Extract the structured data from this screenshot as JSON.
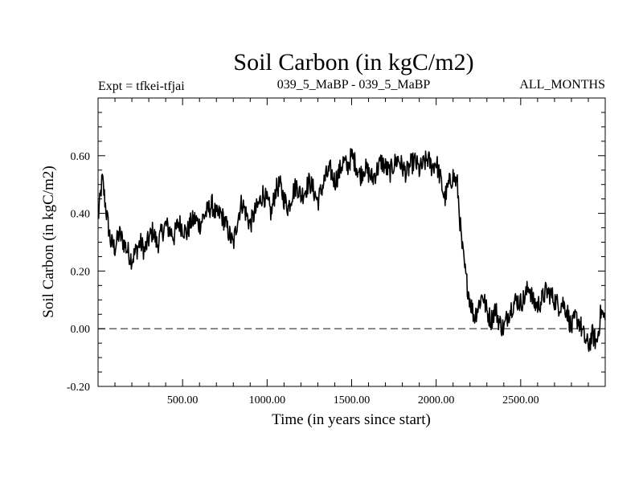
{
  "chart_data": {
    "type": "line",
    "title": "Soil Carbon (in kgC/m2)",
    "subtitle_left": "Expt = tfkei-tfjai",
    "subtitle_center": "039_5_MaBP - 039_5_MaBP",
    "subtitle_right": "ALL_MONTHS",
    "xlabel": "Time (in years since start)",
    "ylabel": "Soil Carbon (in kgC/m2)",
    "xlim": [
      0,
      3000
    ],
    "ylim": [
      -0.2,
      0.8
    ],
    "xticks": [
      500,
      1000,
      1500,
      2000,
      2500
    ],
    "xtick_labels": [
      "500.00",
      "1000.00",
      "1500.00",
      "2000.00",
      "2500.00"
    ],
    "yticks": [
      -0.2,
      0.0,
      0.2,
      0.4,
      0.6
    ],
    "ytick_labels": [
      "-0.20",
      "0.00",
      "0.20",
      "0.40",
      "0.60"
    ],
    "reference_line": {
      "y": 0.0,
      "style": "dashed"
    },
    "series": [
      {
        "x": [
          0,
          25,
          50,
          75,
          100,
          125,
          150,
          175,
          200,
          225,
          250,
          275,
          300,
          325,
          350,
          375,
          400,
          425,
          450,
          475,
          500,
          525,
          550,
          575,
          600,
          625,
          650,
          675,
          700,
          725,
          750,
          775,
          800,
          825,
          850,
          875,
          900,
          925,
          950,
          975,
          1000,
          1025,
          1050,
          1075,
          1100,
          1125,
          1150,
          1175,
          1200,
          1225,
          1250,
          1275,
          1300,
          1325,
          1350,
          1375,
          1400,
          1425,
          1450,
          1475,
          1500,
          1525,
          1550,
          1575,
          1600,
          1625,
          1650,
          1675,
          1700,
          1725,
          1750,
          1775,
          1800,
          1825,
          1850,
          1875,
          1900,
          1925,
          1950,
          1975,
          2000,
          2025,
          2050,
          2075,
          2100,
          2125,
          2150,
          2175,
          2200,
          2225,
          2250,
          2275,
          2300,
          2325,
          2350,
          2375,
          2400,
          2425,
          2450,
          2475,
          2500,
          2525,
          2550,
          2575,
          2600,
          2625,
          2650,
          2675,
          2700,
          2725,
          2750,
          2775,
          2800,
          2825,
          2850,
          2875,
          2900,
          2925,
          2950,
          2975,
          3000
        ],
        "values": [
          0.38,
          0.52,
          0.4,
          0.3,
          0.28,
          0.33,
          0.3,
          0.27,
          0.24,
          0.27,
          0.3,
          0.27,
          0.31,
          0.34,
          0.29,
          0.33,
          0.36,
          0.34,
          0.32,
          0.37,
          0.35,
          0.33,
          0.37,
          0.38,
          0.36,
          0.39,
          0.41,
          0.43,
          0.39,
          0.4,
          0.37,
          0.33,
          0.29,
          0.38,
          0.44,
          0.4,
          0.36,
          0.4,
          0.43,
          0.47,
          0.44,
          0.4,
          0.48,
          0.5,
          0.45,
          0.42,
          0.47,
          0.5,
          0.46,
          0.48,
          0.51,
          0.48,
          0.44,
          0.49,
          0.53,
          0.55,
          0.51,
          0.54,
          0.58,
          0.56,
          0.6,
          0.57,
          0.53,
          0.56,
          0.54,
          0.52,
          0.55,
          0.58,
          0.56,
          0.54,
          0.57,
          0.59,
          0.56,
          0.54,
          0.57,
          0.58,
          0.55,
          0.57,
          0.59,
          0.56,
          0.58,
          0.52,
          0.45,
          0.5,
          0.53,
          0.5,
          0.3,
          0.18,
          0.1,
          0.04,
          0.08,
          0.12,
          0.06,
          0.03,
          0.07,
          0.02,
          0.0,
          0.05,
          0.08,
          0.1,
          0.09,
          0.11,
          0.15,
          0.09,
          0.08,
          0.1,
          0.13,
          0.12,
          0.1,
          0.08,
          0.09,
          0.06,
          0.0,
          0.04,
          0.02,
          -0.03,
          -0.06,
          -0.02,
          -0.05,
          0.06,
          0.03
        ]
      }
    ],
    "grid": false
  }
}
